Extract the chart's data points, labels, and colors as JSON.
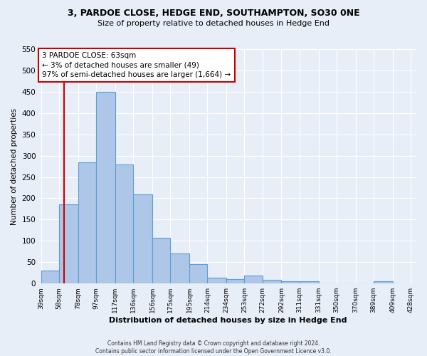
{
  "title1": "3, PARDOE CLOSE, HEDGE END, SOUTHAMPTON, SO30 0NE",
  "title2": "Size of property relative to detached houses in Hedge End",
  "xlabel": "Distribution of detached houses by size in Hedge End",
  "ylabel": "Number of detached properties",
  "footer1": "Contains HM Land Registry data © Crown copyright and database right 2024.",
  "footer2": "Contains public sector information licensed under the Open Government Licence v3.0.",
  "annotation_line1": "3 PARDOE CLOSE: 63sqm",
  "annotation_line2": "← 3% of detached houses are smaller (49)",
  "annotation_line3": "97% of semi-detached houses are larger (1,664) →",
  "bar_values": [
    30,
    185,
    285,
    450,
    280,
    210,
    108,
    70,
    45,
    13,
    10,
    18,
    9,
    5,
    5,
    0,
    0,
    0,
    5
  ],
  "bin_labels": [
    "39sqm",
    "58sqm",
    "78sqm",
    "97sqm",
    "117sqm",
    "136sqm",
    "156sqm",
    "175sqm",
    "195sqm",
    "214sqm",
    "234sqm",
    "253sqm",
    "272sqm",
    "292sqm",
    "311sqm",
    "331sqm",
    "350sqm",
    "370sqm",
    "389sqm",
    "409sqm",
    "428sqm"
  ],
  "bar_color": "#aec6e8",
  "bar_edge_color": "#5a9fd4",
  "red_line_x": 63,
  "bin_edges": [
    39,
    58,
    78,
    97,
    117,
    136,
    156,
    175,
    195,
    214,
    234,
    253,
    272,
    292,
    311,
    331,
    350,
    370,
    389,
    409
  ],
  "red_line_color": "#cc0000",
  "annotation_box_color": "#cc0000",
  "background_color": "#e8eef8",
  "grid_color": "#ffffff",
  "ylim": [
    0,
    550
  ],
  "yticks": [
    0,
    50,
    100,
    150,
    200,
    250,
    300,
    350,
    400,
    450,
    500,
    550
  ]
}
